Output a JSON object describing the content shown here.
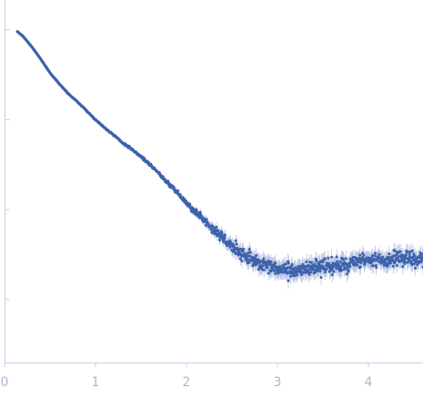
{
  "chart_data": {
    "type": "scatter",
    "title": "",
    "xlabel": "",
    "ylabel": "",
    "xlim": [
      0,
      4.6
    ],
    "ylim": [
      -3.7,
      0.3
    ],
    "x_ticks": [
      0,
      1,
      2,
      3,
      4
    ],
    "x_tick_labels": [
      "0",
      "1",
      "2",
      "3",
      "4"
    ],
    "y_ticks": [
      -3.0,
      -2.0,
      -1.0,
      0.0
    ],
    "y_tick_labels": [
      "",
      "",
      "",
      ""
    ],
    "grid": false,
    "legend": "none",
    "colors": {
      "points": "#3d62ad",
      "error_bars": "#b9c5e1",
      "axes": "#c5cee6",
      "tick_labels": "#a9b6d6"
    },
    "series": [
      {
        "x": [
          0.14,
          0.2,
          0.3,
          0.4,
          0.5,
          0.6,
          0.7,
          0.8,
          0.9,
          1.0,
          1.1,
          1.2,
          1.3,
          1.4,
          1.5,
          1.6,
          1.7,
          1.8,
          1.9,
          2.0,
          2.1,
          2.2,
          2.3,
          2.4,
          2.5,
          2.6,
          2.7,
          2.8,
          2.9,
          3.0,
          3.1,
          3.2,
          3.3,
          3.4,
          3.5,
          3.6,
          3.7,
          3.8,
          3.9,
          4.0,
          4.1,
          4.2,
          4.3,
          4.4,
          4.5,
          4.6
        ],
        "y": [
          -0.02,
          -0.07,
          -0.19,
          -0.33,
          -0.48,
          -0.6,
          -0.71,
          -0.8,
          -0.9,
          -1.0,
          -1.09,
          -1.17,
          -1.26,
          -1.33,
          -1.41,
          -1.5,
          -1.6,
          -1.71,
          -1.81,
          -1.93,
          -2.03,
          -2.12,
          -2.22,
          -2.32,
          -2.41,
          -2.48,
          -2.54,
          -2.6,
          -2.64,
          -2.66,
          -2.68,
          -2.68,
          -2.66,
          -2.64,
          -2.64,
          -2.63,
          -2.62,
          -2.6,
          -2.58,
          -2.57,
          -2.57,
          -2.56,
          -2.55,
          -2.55,
          -2.55,
          -2.55
        ],
        "error": [
          0.002,
          0.002,
          0.003,
          0.003,
          0.004,
          0.004,
          0.005,
          0.005,
          0.006,
          0.007,
          0.008,
          0.009,
          0.01,
          0.012,
          0.014,
          0.016,
          0.019,
          0.022,
          0.026,
          0.03,
          0.035,
          0.042,
          0.05,
          0.058,
          0.066,
          0.072,
          0.077,
          0.08,
          0.083,
          0.085,
          0.086,
          0.087,
          0.087,
          0.087,
          0.087,
          0.086,
          0.086,
          0.085,
          0.085,
          0.084,
          0.084,
          0.083,
          0.083,
          0.082,
          0.082,
          0.082
        ]
      }
    ]
  }
}
